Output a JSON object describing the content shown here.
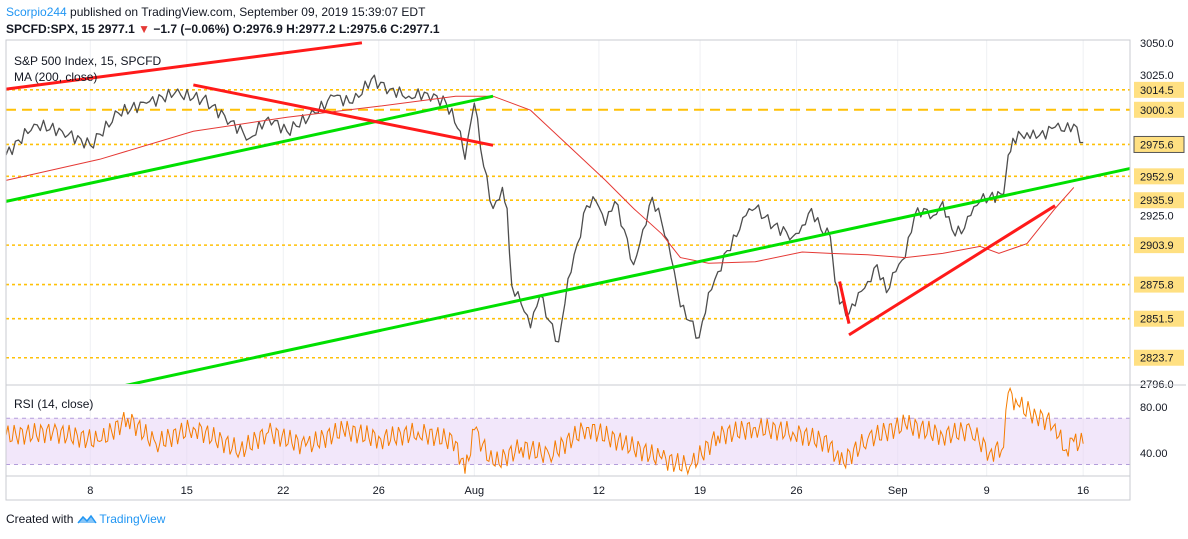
{
  "header": {
    "author": "Scorpio244",
    "published_line": " published on TradingView.com, September 09, 2019 15:39:07 EDT",
    "symbol": "SPCFD:SPX, 15",
    "last": "2977.1",
    "change_arrow": "▼",
    "change": "−1.7 (−0.06%)",
    "open_label": "O:",
    "open": "2976.9",
    "high_label": "H:",
    "high": "2977.2",
    "low_label": "L:",
    "low": "2975.6",
    "close_label": "C:",
    "close": "2977.1"
  },
  "footer": {
    "created_with": "Created with",
    "brand": "TradingView"
  },
  "colors": {
    "candle": "#4e4e4e",
    "ma": "#e53935",
    "support_level": "#ffc107",
    "green_trend": "#00e000",
    "red_trend": "#ff1a1a",
    "rsi_line": "#f57c00",
    "rsi_band": "#e8d3f5",
    "price_tag": "#ffe082",
    "last_tag_border": "#555555",
    "grid": "#eef0f3",
    "axis_text": "#131722"
  },
  "chart_data": [
    {
      "type": "candlestick",
      "title": "S&P 500 Index, 15, SPCFD",
      "indicator_label": "MA (200, close)",
      "indicator": "MA (200, close)",
      "ylim": [
        2805,
        3050
      ],
      "y_tick_labels": [
        "3025.0",
        "2925.0"
      ],
      "partial_top_label": "3050.0",
      "partial_bottom_label": "2796.0",
      "highlighted_levels": [
        {
          "value": 3014.5,
          "label": "3014.5",
          "style": "dotted"
        },
        {
          "value": 3000.3,
          "label": "3000.3",
          "style": "dashed"
        },
        {
          "value": 2975.6,
          "label": "2975.6",
          "style": "dotted",
          "last_price": true
        },
        {
          "value": 2952.9,
          "label": "2952.9",
          "style": "dotted"
        },
        {
          "value": 2935.9,
          "label": "2935.9",
          "style": "dotted"
        },
        {
          "value": 2903.9,
          "label": "2903.9",
          "style": "dotted"
        },
        {
          "value": 2875.8,
          "label": "2875.8",
          "style": "dotted"
        },
        {
          "value": 2851.5,
          "label": "2851.5",
          "style": "dotted"
        },
        {
          "value": 2823.7,
          "label": "2823.7",
          "style": "dotted"
        }
      ],
      "x_tick_labels": [
        {
          "label": "8",
          "pos": 0.09
        },
        {
          "label": "15",
          "pos": 0.193
        },
        {
          "label": "22",
          "pos": 0.296
        },
        {
          "label": "26",
          "pos": 0.398
        },
        {
          "label": "Aug",
          "pos": 0.5
        },
        {
          "label": "12",
          "pos": 0.633
        },
        {
          "label": "19",
          "pos": 0.741
        },
        {
          "label": "26",
          "pos": 0.844
        },
        {
          "label": "Sep",
          "pos": 0.952
        },
        {
          "label": "9",
          "pos": 1.047
        },
        {
          "label": "16",
          "pos": 1.15
        }
      ],
      "price_path": [
        [
          0.0,
          2968
        ],
        [
          0.03,
          2990
        ],
        [
          0.06,
          2985
        ],
        [
          0.09,
          2975
        ],
        [
          0.12,
          2998
        ],
        [
          0.15,
          3005
        ],
        [
          0.18,
          3012
        ],
        [
          0.21,
          3008
        ],
        [
          0.24,
          2992
        ],
        [
          0.26,
          2980
        ],
        [
          0.28,
          2995
        ],
        [
          0.3,
          2985
        ],
        [
          0.33,
          2998
        ],
        [
          0.35,
          3010
        ],
        [
          0.37,
          3005
        ],
        [
          0.39,
          3022
        ],
        [
          0.41,
          3015
        ],
        [
          0.43,
          3010
        ],
        [
          0.45,
          3012
        ],
        [
          0.47,
          3005
        ],
        [
          0.485,
          2985
        ],
        [
          0.49,
          2965
        ],
        [
          0.5,
          3005
        ],
        [
          0.51,
          2960
        ],
        [
          0.52,
          2930
        ],
        [
          0.53,
          2945
        ],
        [
          0.535,
          2930
        ],
        [
          0.54,
          2875
        ],
        [
          0.55,
          2862
        ],
        [
          0.56,
          2845
        ],
        [
          0.57,
          2868
        ],
        [
          0.58,
          2850
        ],
        [
          0.59,
          2835
        ],
        [
          0.6,
          2880
        ],
        [
          0.61,
          2905
        ],
        [
          0.62,
          2932
        ],
        [
          0.63,
          2935
        ],
        [
          0.64,
          2918
        ],
        [
          0.65,
          2935
        ],
        [
          0.66,
          2915
        ],
        [
          0.67,
          2890
        ],
        [
          0.68,
          2915
        ],
        [
          0.69,
          2938
        ],
        [
          0.7,
          2920
        ],
        [
          0.71,
          2895
        ],
        [
          0.72,
          2860
        ],
        [
          0.73,
          2850
        ],
        [
          0.74,
          2838
        ],
        [
          0.75,
          2870
        ],
        [
          0.76,
          2885
        ],
        [
          0.77,
          2900
        ],
        [
          0.78,
          2910
        ],
        [
          0.79,
          2925
        ],
        [
          0.8,
          2930
        ],
        [
          0.82,
          2918
        ],
        [
          0.84,
          2910
        ],
        [
          0.85,
          2918
        ],
        [
          0.86,
          2930
        ],
        [
          0.87,
          2915
        ],
        [
          0.88,
          2910
        ],
        [
          0.885,
          2878
        ],
        [
          0.89,
          2862
        ],
        [
          0.9,
          2855
        ],
        [
          0.91,
          2870
        ],
        [
          0.92,
          2878
        ],
        [
          0.93,
          2890
        ],
        [
          0.94,
          2870
        ],
        [
          0.95,
          2885
        ],
        [
          0.96,
          2895
        ],
        [
          0.97,
          2925
        ],
        [
          0.98,
          2930
        ],
        [
          0.99,
          2925
        ],
        [
          1.0,
          2935
        ],
        [
          1.01,
          2915
        ],
        [
          1.02,
          2912
        ],
        [
          1.03,
          2925
        ],
        [
          1.04,
          2935
        ],
        [
          1.05,
          2938
        ],
        [
          1.065,
          2940
        ],
        [
          1.07,
          2968
        ],
        [
          1.075,
          2980
        ],
        [
          1.09,
          2984
        ],
        [
          1.1,
          2980
        ],
        [
          1.12,
          2988
        ],
        [
          1.13,
          2985
        ],
        [
          1.14,
          2990
        ],
        [
          1.15,
          2977
        ]
      ],
      "ma_path": [
        [
          0.0,
          2950
        ],
        [
          0.1,
          2965
        ],
        [
          0.2,
          2985
        ],
        [
          0.3,
          2995
        ],
        [
          0.4,
          3003
        ],
        [
          0.48,
          3010
        ],
        [
          0.52,
          3010
        ],
        [
          0.56,
          3000
        ],
        [
          0.6,
          2975
        ],
        [
          0.64,
          2950
        ],
        [
          0.67,
          2930
        ],
        [
          0.7,
          2912
        ],
        [
          0.72,
          2895
        ],
        [
          0.75,
          2891
        ],
        [
          0.8,
          2892
        ],
        [
          0.85,
          2899
        ],
        [
          0.88,
          2898
        ],
        [
          0.92,
          2897
        ],
        [
          0.96,
          2895
        ],
        [
          1.0,
          2898
        ],
        [
          1.04,
          2903
        ],
        [
          1.06,
          2898
        ],
        [
          1.09,
          2905
        ],
        [
          1.12,
          2930
        ],
        [
          1.14,
          2945
        ]
      ],
      "green_trendlines": [
        [
          [
            0.0,
            2935
          ],
          [
            0.52,
            3010
          ]
        ],
        [
          [
            0.1,
            2800
          ],
          [
            1.28,
            2970
          ]
        ]
      ],
      "red_trendlines": [
        [
          [
            0.0,
            3015
          ],
          [
            0.38,
            3048
          ]
        ],
        [
          [
            0.2,
            3018
          ],
          [
            0.52,
            2975
          ]
        ],
        [
          [
            0.89,
            2878
          ],
          [
            0.9,
            2848
          ]
        ],
        [
          [
            0.9,
            2840
          ],
          [
            1.12,
            2932
          ]
        ]
      ]
    },
    {
      "type": "line",
      "title": "RSI (14, close)",
      "indicator": "RSI (14, close)",
      "ylim": [
        20,
        98
      ],
      "y_tick_labels": [
        "80.00",
        "40.00"
      ],
      "band": [
        30,
        70
      ],
      "rsi_path": [
        [
          0.0,
          55
        ],
        [
          0.05,
          58
        ],
        [
          0.1,
          50
        ],
        [
          0.13,
          70
        ],
        [
          0.16,
          48
        ],
        [
          0.2,
          62
        ],
        [
          0.25,
          42
        ],
        [
          0.28,
          58
        ],
        [
          0.32,
          46
        ],
        [
          0.36,
          60
        ],
        [
          0.4,
          52
        ],
        [
          0.44,
          58
        ],
        [
          0.48,
          50
        ],
        [
          0.49,
          22
        ],
        [
          0.5,
          60
        ],
        [
          0.52,
          30
        ],
        [
          0.55,
          45
        ],
        [
          0.58,
          38
        ],
        [
          0.62,
          62
        ],
        [
          0.66,
          48
        ],
        [
          0.7,
          35
        ],
        [
          0.73,
          28
        ],
        [
          0.76,
          55
        ],
        [
          0.8,
          62
        ],
        [
          0.84,
          58
        ],
        [
          0.88,
          48
        ],
        [
          0.89,
          30
        ],
        [
          0.92,
          52
        ],
        [
          0.96,
          65
        ],
        [
          1.0,
          55
        ],
        [
          1.03,
          60
        ],
        [
          1.05,
          40
        ],
        [
          1.065,
          45
        ],
        [
          1.07,
          92
        ],
        [
          1.08,
          82
        ],
        [
          1.1,
          72
        ],
        [
          1.12,
          65
        ],
        [
          1.13,
          42
        ],
        [
          1.14,
          50
        ],
        [
          1.15,
          48
        ]
      ]
    }
  ]
}
